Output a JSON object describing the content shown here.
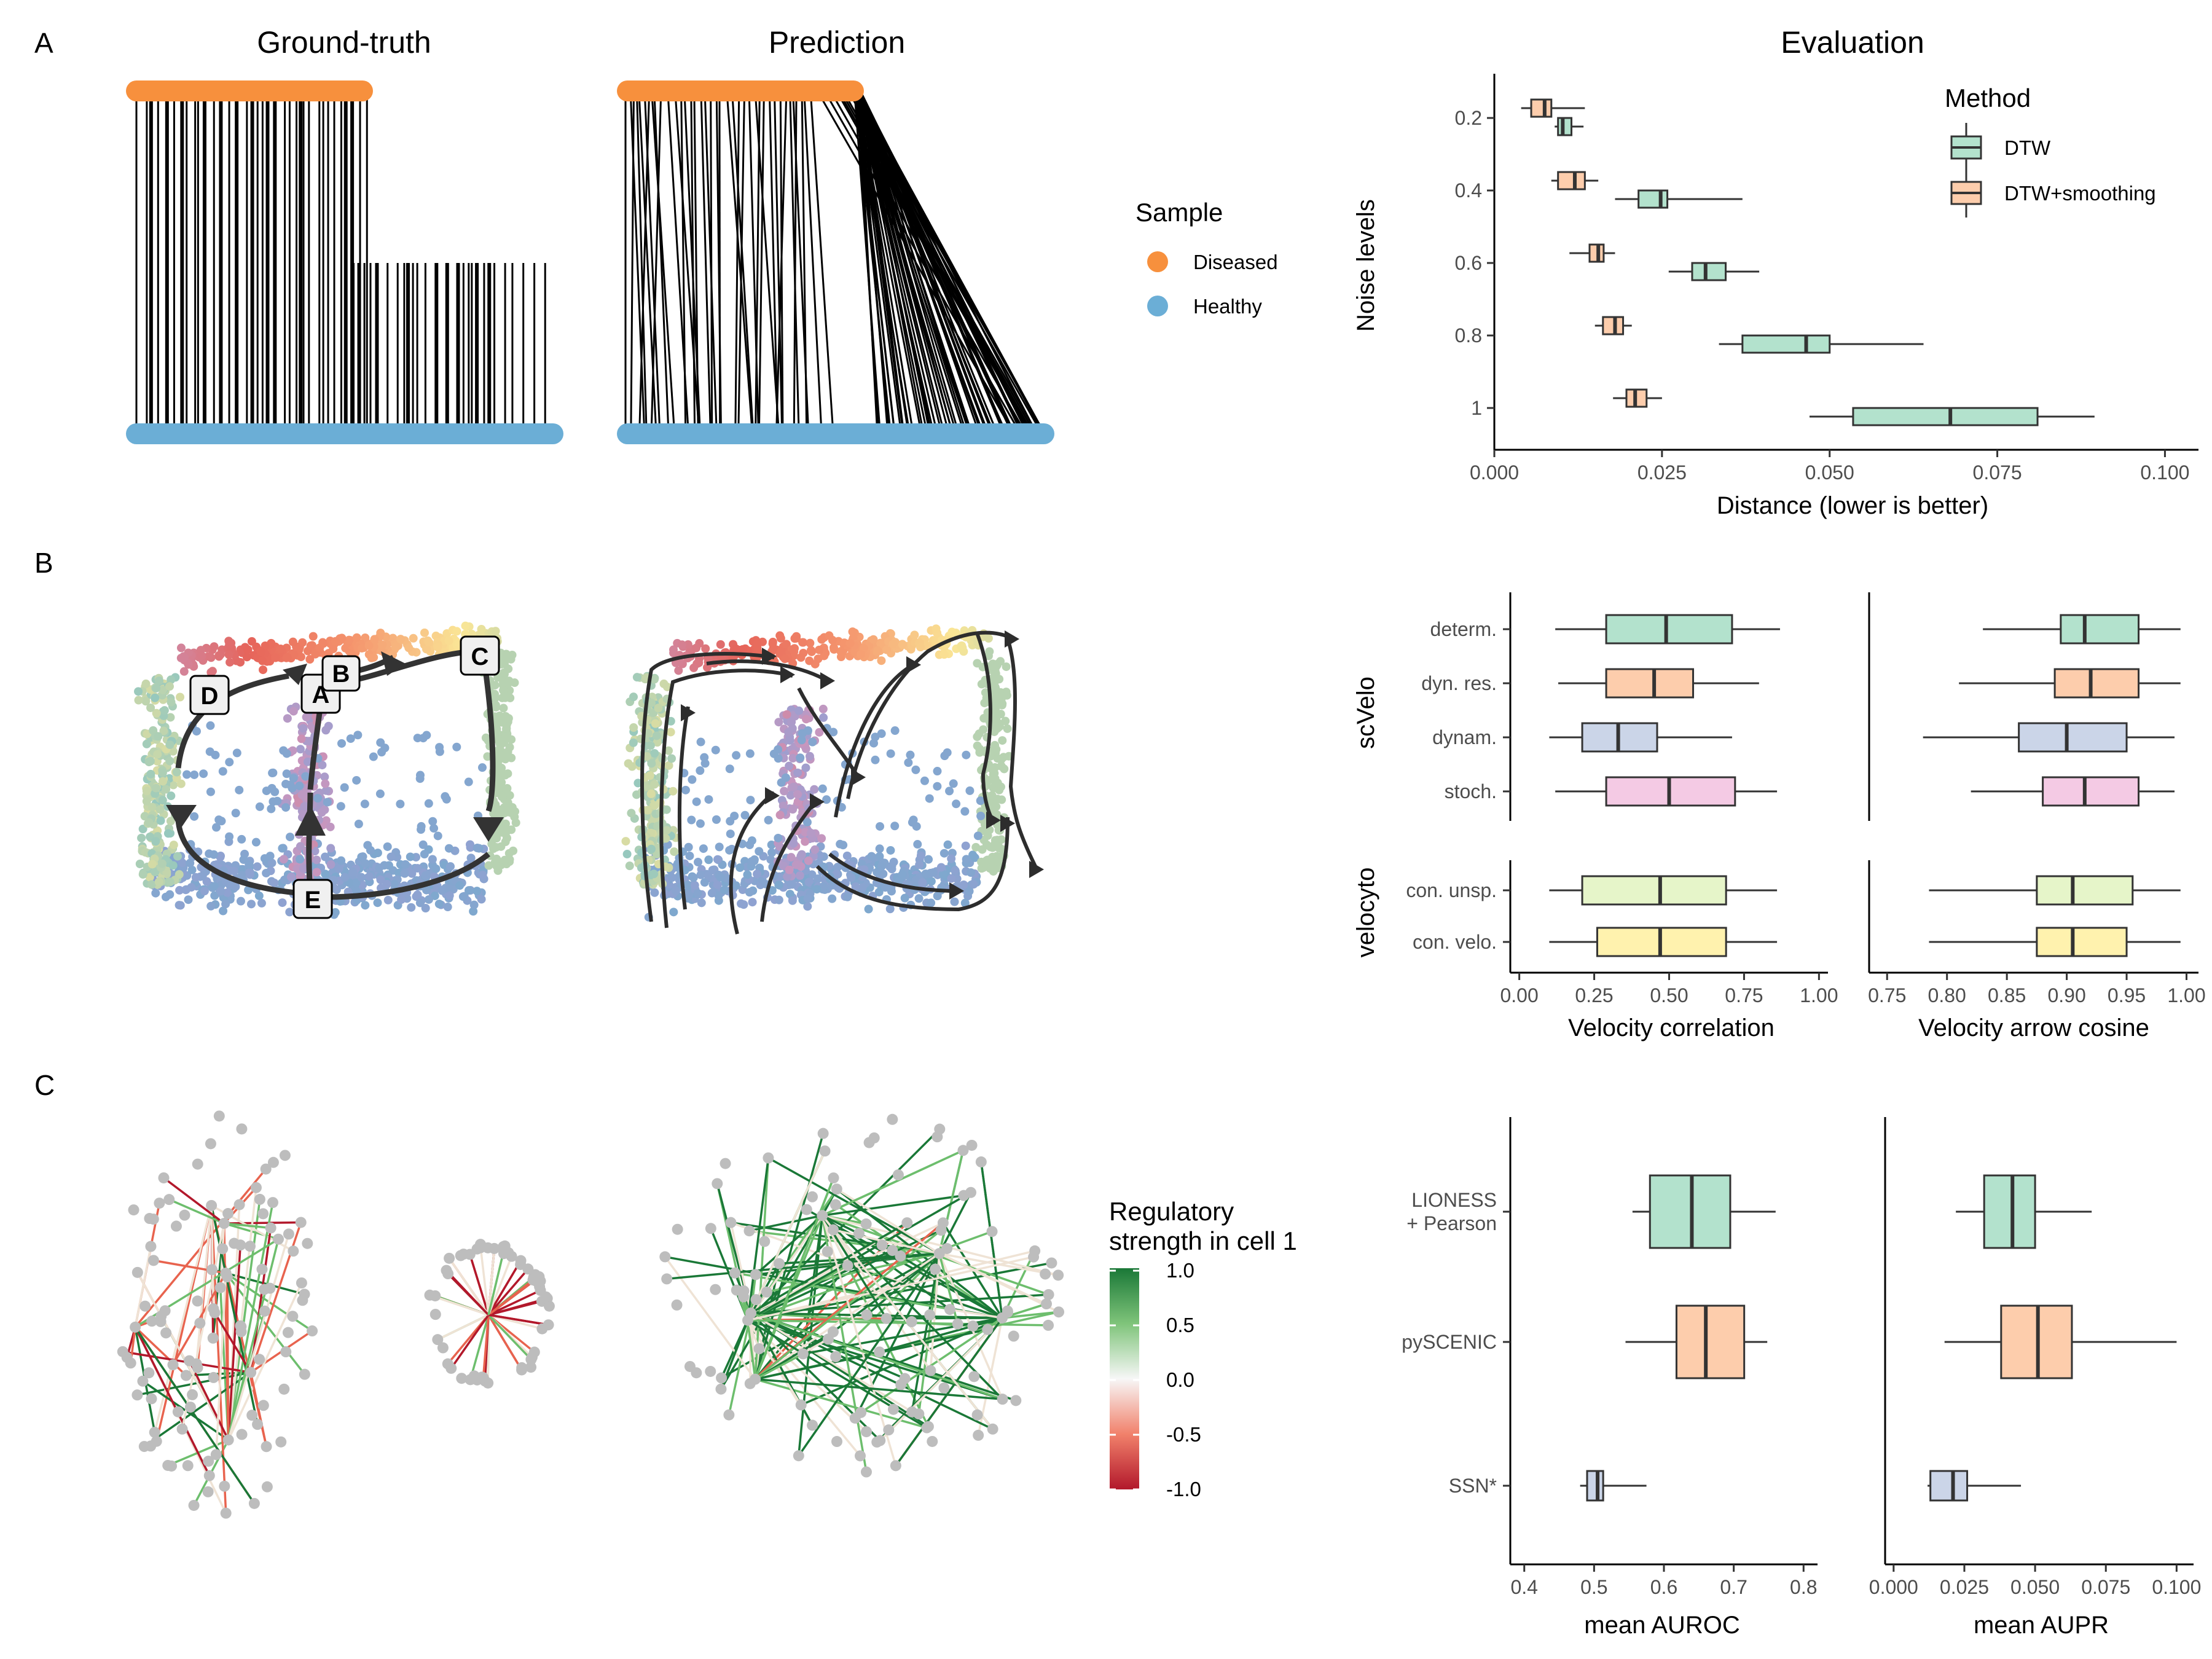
{
  "panels": {
    "A": {
      "label": "A",
      "ground_truth_title": "Ground-truth",
      "prediction_title": "Prediction",
      "evaluation_title": "Evaluation",
      "sample_legend": {
        "title": "Sample",
        "items": [
          {
            "label": "Diseased",
            "color": "#F7903D"
          },
          {
            "label": "Healthy",
            "color": "#6BAED6"
          }
        ]
      }
    },
    "B": {
      "label": "B",
      "trajectory_nodes": [
        "A",
        "B",
        "C",
        "D",
        "E"
      ]
    },
    "C": {
      "label": "C",
      "colorbar": {
        "title_line1": "Regulatory",
        "title_line2": "strength in cell 1",
        "ticks": [
          "1.0",
          "0.5",
          "0.0",
          "-0.5",
          "-1.0"
        ]
      }
    }
  },
  "chart_data": [
    {
      "id": "evaluation_noise",
      "type": "boxplot",
      "orientation": "horizontal",
      "title": "Evaluation",
      "xlabel": "Distance (lower is better)",
      "ylabel": "Noise levels",
      "xlim": [
        0,
        0.105
      ],
      "xticks": [
        "0.000",
        "0.025",
        "0.050",
        "0.075",
        "0.100"
      ],
      "xtick_values": [
        0,
        0.025,
        0.05,
        0.075,
        0.1
      ],
      "categories": [
        "0.2",
        "0.4",
        "0.6",
        "0.8",
        "1"
      ],
      "legend": {
        "title": "Method",
        "position": "top-right"
      },
      "series": [
        {
          "name": "DTW",
          "color": "#B3E2CD",
          "boxes": [
            {
              "min": 0.009,
              "q1": 0.0095,
              "median": 0.0102,
              "q3": 0.0115,
              "max": 0.0133
            },
            {
              "min": 0.018,
              "q1": 0.0215,
              "median": 0.0248,
              "q3": 0.0258,
              "max": 0.037
            },
            {
              "min": 0.026,
              "q1": 0.0295,
              "median": 0.0315,
              "q3": 0.0345,
              "max": 0.0395
            },
            {
              "min": 0.0335,
              "q1": 0.037,
              "median": 0.0465,
              "q3": 0.05,
              "max": 0.064
            },
            {
              "min": 0.047,
              "q1": 0.0535,
              "median": 0.068,
              "q3": 0.081,
              "max": 0.0895
            }
          ]
        },
        {
          "name": "DTW+smoothing",
          "color": "#FDCDAC",
          "boxes": [
            {
              "min": 0.004,
              "q1": 0.0055,
              "median": 0.0075,
              "q3": 0.0085,
              "max": 0.0135
            },
            {
              "min": 0.0085,
              "q1": 0.0095,
              "median": 0.012,
              "q3": 0.0135,
              "max": 0.0155
            },
            {
              "min": 0.0112,
              "q1": 0.0142,
              "median": 0.0155,
              "q3": 0.0163,
              "max": 0.018
            },
            {
              "min": 0.015,
              "q1": 0.0162,
              "median": 0.018,
              "q3": 0.0192,
              "max": 0.0205
            },
            {
              "min": 0.0177,
              "q1": 0.0197,
              "median": 0.021,
              "q3": 0.0227,
              "max": 0.025
            }
          ]
        }
      ]
    },
    {
      "id": "velocity_correlation",
      "type": "boxplot",
      "orientation": "horizontal",
      "xlabel": "Velocity correlation",
      "xlim": [
        -0.03,
        1.03
      ],
      "xticks": [
        "0.00",
        "0.25",
        "0.50",
        "0.75",
        "1.00"
      ],
      "xtick_values": [
        0,
        0.25,
        0.5,
        0.75,
        1
      ],
      "groups": [
        {
          "name": "scVelo",
          "categories": [
            "determ.",
            "dyn. res.",
            "dynam.",
            "stoch."
          ]
        },
        {
          "name": "velocyto",
          "categories": [
            "con. unsp.",
            "con. velo."
          ]
        }
      ],
      "boxes": [
        {
          "category": "determ.",
          "color": "#B3E2CD",
          "min": 0.12,
          "q1": 0.29,
          "median": 0.49,
          "q3": 0.71,
          "max": 0.87
        },
        {
          "category": "dyn. res.",
          "color": "#FDCDAC",
          "min": 0.13,
          "q1": 0.29,
          "median": 0.45,
          "q3": 0.58,
          "max": 0.8
        },
        {
          "category": "dynam.",
          "color": "#CBD5E8",
          "min": 0.1,
          "q1": 0.21,
          "median": 0.33,
          "q3": 0.46,
          "max": 0.71
        },
        {
          "category": "stoch.",
          "color": "#F4CAE4",
          "min": 0.12,
          "q1": 0.29,
          "median": 0.5,
          "q3": 0.72,
          "max": 0.86
        },
        {
          "category": "con. unsp.",
          "color": "#E6F5C9",
          "min": 0.1,
          "q1": 0.21,
          "median": 0.47,
          "q3": 0.69,
          "max": 0.86
        },
        {
          "category": "con. velo.",
          "color": "#FFF2AE",
          "min": 0.1,
          "q1": 0.26,
          "median": 0.47,
          "q3": 0.69,
          "max": 0.86
        }
      ]
    },
    {
      "id": "velocity_arrow_cosine",
      "type": "boxplot",
      "orientation": "horizontal",
      "xlabel": "Velocity arrow cosine",
      "xlim": [
        0.735,
        1.01
      ],
      "xticks": [
        "0.75",
        "0.80",
        "0.85",
        "0.90",
        "0.95",
        "1.00"
      ],
      "xtick_values": [
        0.75,
        0.8,
        0.85,
        0.9,
        0.95,
        1.0
      ],
      "boxes": [
        {
          "category": "determ.",
          "color": "#B3E2CD",
          "min": 0.83,
          "q1": 0.895,
          "median": 0.915,
          "q3": 0.96,
          "max": 0.995
        },
        {
          "category": "dyn. res.",
          "color": "#FDCDAC",
          "min": 0.81,
          "q1": 0.89,
          "median": 0.92,
          "q3": 0.96,
          "max": 0.995
        },
        {
          "category": "dynam.",
          "color": "#CBD5E8",
          "min": 0.78,
          "q1": 0.86,
          "median": 0.9,
          "q3": 0.95,
          "max": 0.99
        },
        {
          "category": "stoch.",
          "color": "#F4CAE4",
          "min": 0.82,
          "q1": 0.88,
          "median": 0.915,
          "q3": 0.96,
          "max": 0.99
        },
        {
          "category": "con. unsp.",
          "color": "#E6F5C9",
          "min": 0.785,
          "q1": 0.875,
          "median": 0.905,
          "q3": 0.955,
          "max": 0.995
        },
        {
          "category": "con. velo.",
          "color": "#FFF2AE",
          "min": 0.785,
          "q1": 0.875,
          "median": 0.905,
          "q3": 0.95,
          "max": 0.995
        }
      ]
    },
    {
      "id": "mean_auroc",
      "type": "boxplot",
      "orientation": "horizontal",
      "xlabel": "mean AUROC",
      "xlim": [
        0.38,
        0.82
      ],
      "xticks": [
        "0.4",
        "0.5",
        "0.6",
        "0.7",
        "0.8"
      ],
      "xtick_values": [
        0.4,
        0.5,
        0.6,
        0.7,
        0.8
      ],
      "categories": [
        "LIONESS\n+ Pearson",
        "pySCENIC",
        "SSN*"
      ],
      "boxes": [
        {
          "category": "LIONESS + Pearson",
          "color": "#B3E2CD",
          "min": 0.555,
          "q1": 0.58,
          "median": 0.64,
          "q3": 0.695,
          "max": 0.76
        },
        {
          "category": "pySCENIC",
          "color": "#FDCDAC",
          "min": 0.545,
          "q1": 0.618,
          "median": 0.66,
          "q3": 0.715,
          "max": 0.748
        },
        {
          "category": "SSN*",
          "color": "#CBD5E8",
          "min": 0.48,
          "q1": 0.49,
          "median": 0.505,
          "q3": 0.513,
          "max": 0.575
        }
      ]
    },
    {
      "id": "mean_aupr",
      "type": "boxplot",
      "orientation": "horizontal",
      "xlabel": "mean AUPR",
      "xlim": [
        -0.003,
        0.106
      ],
      "xticks": [
        "0.000",
        "0.025",
        "0.050",
        "0.075",
        "0.100"
      ],
      "xtick_values": [
        0,
        0.025,
        0.05,
        0.075,
        0.1
      ],
      "boxes": [
        {
          "category": "LIONESS + Pearson",
          "color": "#B3E2CD",
          "min": 0.022,
          "q1": 0.032,
          "median": 0.042,
          "q3": 0.05,
          "max": 0.07
        },
        {
          "category": "pySCENIC",
          "color": "#FDCDAC",
          "min": 0.018,
          "q1": 0.038,
          "median": 0.051,
          "q3": 0.063,
          "max": 0.1
        },
        {
          "category": "SSN*",
          "color": "#CBD5E8",
          "min": 0.012,
          "q1": 0.013,
          "median": 0.021,
          "q3": 0.026,
          "max": 0.045
        }
      ]
    }
  ]
}
